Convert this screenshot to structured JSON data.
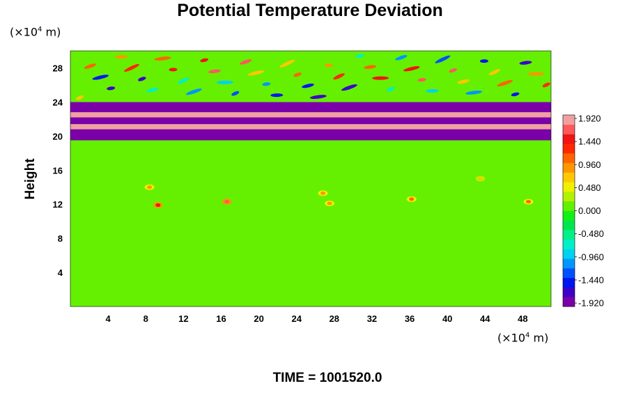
{
  "chart_data": {
    "type": "heatmap",
    "title": "Potential Temperature Deviation",
    "ylabel": "Height",
    "x_unit": {
      "prefix": "(×10",
      "exp": "4",
      "suffix": " m)"
    },
    "y_unit": {
      "prefix": "(×10",
      "exp": "4",
      "suffix": " m)"
    },
    "xlim": [
      0,
      51
    ],
    "ylim": [
      0,
      30
    ],
    "x_ticks": [
      4,
      8,
      12,
      16,
      20,
      24,
      28,
      32,
      36,
      40,
      44,
      48
    ],
    "y_ticks": [
      4,
      8,
      12,
      16,
      20,
      24,
      28
    ],
    "colorbar": {
      "ticks": [
        "1.920",
        "1.440",
        "0.960",
        "0.480",
        "0.000",
        "-0.480",
        "-0.960",
        "-1.440",
        "-1.920"
      ],
      "min": -1.92,
      "max": 1.92,
      "colors": [
        "#7a00a8",
        "#3c00c8",
        "#0014f0",
        "#0050ff",
        "#0096ff",
        "#00d2f0",
        "#00f0c8",
        "#00f08c",
        "#00e650",
        "#14f014",
        "#64f000",
        "#b4f000",
        "#f0f000",
        "#ffc800",
        "#ff9600",
        "#ff6400",
        "#ff2800",
        "#f01414",
        "#ff5a5a",
        "#f0a0a0"
      ]
    },
    "time_label": "TIME = 1001520.0",
    "bands": [
      {
        "y_range": [
          0,
          19.5
        ],
        "value": 0.0,
        "description": "mostly near-zero field with weak positive patches around y=11-13"
      },
      {
        "y_range": [
          19.5,
          20.8
        ],
        "value": -1.92
      },
      {
        "y_range": [
          20.8,
          21.4
        ],
        "value": 1.92
      },
      {
        "y_range": [
          21.4,
          22.2
        ],
        "value": -1.92
      },
      {
        "y_range": [
          22.2,
          22.8
        ],
        "value": 1.92
      },
      {
        "y_range": [
          22.8,
          24.0
        ],
        "value": -1.92
      },
      {
        "y_range": [
          24.0,
          30.0
        ],
        "value": 0.0,
        "description": "wave-like alternating anomalies"
      }
    ],
    "hotspots": [
      {
        "x": 9.3,
        "y": 11.9,
        "value": 1.4
      },
      {
        "x": 8.4,
        "y": 14.0,
        "value": 0.9
      },
      {
        "x": 16.6,
        "y": 12.3,
        "value": 1.6
      },
      {
        "x": 27.5,
        "y": 12.1,
        "value": 0.9
      },
      {
        "x": 26.8,
        "y": 13.3,
        "value": 0.8
      },
      {
        "x": 36.2,
        "y": 12.6,
        "value": 1.0
      },
      {
        "x": 48.6,
        "y": 12.3,
        "value": 1.0
      },
      {
        "x": 43.5,
        "y": 15.0,
        "value": 0.6
      }
    ]
  }
}
